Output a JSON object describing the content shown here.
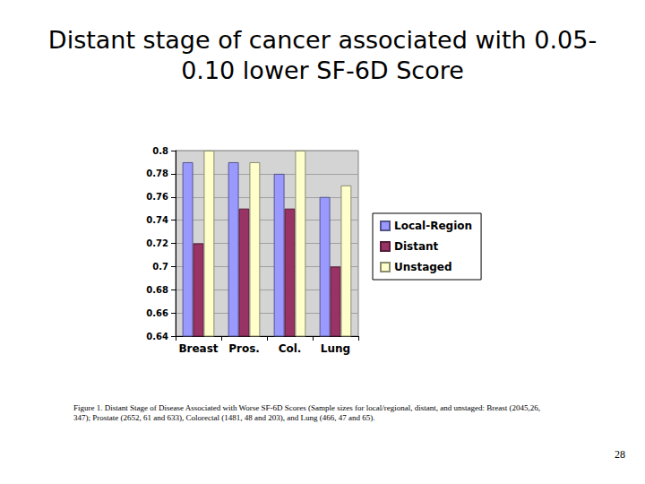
{
  "chart_data": {
    "type": "bar",
    "title": "Distant stage of cancer associated with 0.05-0.10 lower SF-6D Score",
    "annotations": [
      "Figure 1. Distant Stage of Disease Associated with Worse SF-6D Scores (Sample sizes for local/regional, distant, and unstaged: Breast (2045,26, 347); Prostate (2652, 61 and 633), Colorectal (1481, 48 and 203), and Lung (466, 47 and 65).",
      "28"
    ],
    "categories": [
      "Breast",
      "Pros.",
      "Col.",
      "Lung"
    ],
    "series": [
      {
        "name": "Local-Region",
        "color": "#9999ff",
        "values": [
          0.79,
          0.79,
          0.78,
          0.76
        ]
      },
      {
        "name": "Distant",
        "color": "#993366",
        "values": [
          0.72,
          0.75,
          0.75,
          0.7
        ]
      },
      {
        "name": "Unstaged",
        "color": "#ffffcc",
        "values": [
          0.8,
          0.79,
          0.8,
          0.77
        ]
      }
    ],
    "ylim": [
      0.64,
      0.8
    ],
    "yticks": [
      0.64,
      0.66,
      0.68,
      0.7,
      0.72,
      0.74,
      0.76,
      0.78,
      0.8
    ],
    "grid": true,
    "legend": "right"
  }
}
